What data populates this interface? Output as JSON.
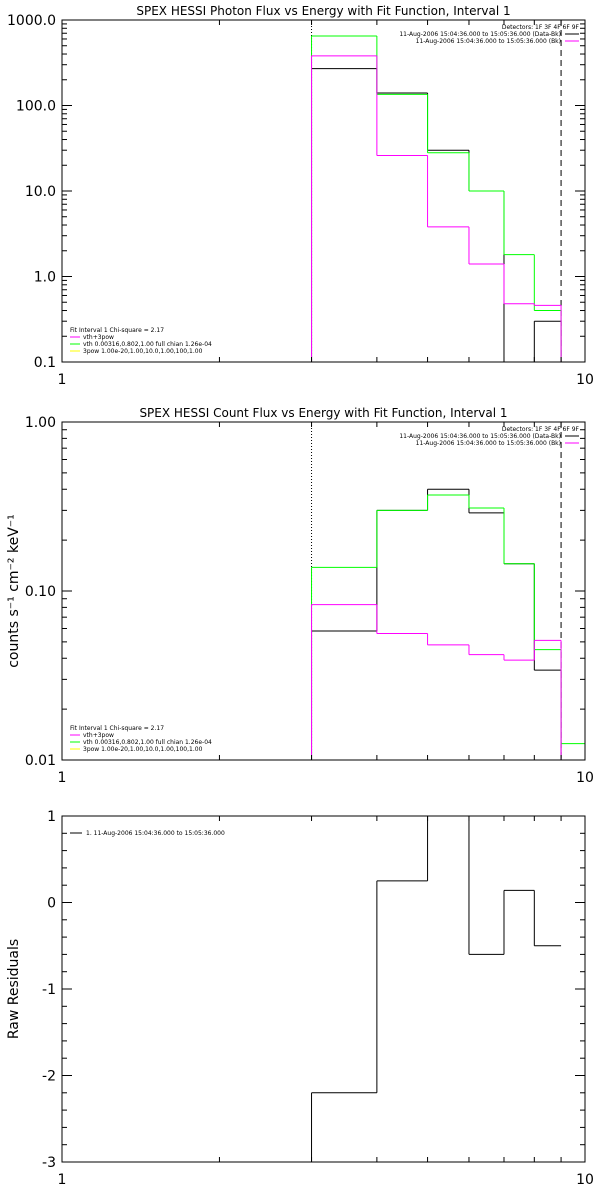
{
  "colors": {
    "background": "#ffffff",
    "axis": "#000000",
    "data": "#000000",
    "model_vth_3pow": "#ff00ff",
    "model_vth": "#00ff00",
    "model_3pow": "#ffff00",
    "bk": "#ff00ff"
  },
  "chart_data": [
    {
      "type": "line",
      "id": "photon",
      "title": "SPEX HESSI Photon Flux vs Energy with Fit Function, Interval 1",
      "xlabel": "",
      "ylabel": "",
      "x_scale": "log",
      "y_scale": "log",
      "xlim": [
        1,
        10
      ],
      "ylim": [
        0.1,
        1000
      ],
      "x_ticks": [
        {
          "value": 1,
          "label": "1"
        },
        {
          "value": 10,
          "label": "10"
        }
      ],
      "y_ticks": [
        {
          "value": 0.1,
          "label": "0.1"
        },
        {
          "value": 1,
          "label": "1.0"
        },
        {
          "value": 10,
          "label": "10.0"
        },
        {
          "value": 100,
          "label": "100.0"
        },
        {
          "value": 1000,
          "label": "1000.0"
        }
      ],
      "vlines": [
        {
          "x": 3.0,
          "style": "dotted",
          "color": "#000000"
        },
        {
          "x": 9.0,
          "style": "dashed",
          "color": "#000000"
        }
      ],
      "bin_edges": [
        3.0,
        4.0,
        5.0,
        6.0,
        7.0,
        8.0,
        9.0,
        10.0
      ],
      "series": [
        {
          "color": "#000000",
          "values": [
            270,
            140,
            30,
            10,
            null,
            0.3,
            null
          ]
        },
        {
          "color": "#00ff00",
          "values": [
            650,
            135,
            28,
            10,
            1.8,
            0.4,
            0.1
          ]
        },
        {
          "color": "#ff00ff",
          "values": [
            380,
            26,
            3.8,
            1.4,
            0.48,
            0.46,
            null
          ]
        }
      ],
      "legend_top": {
        "placement": "top-right",
        "header": "Detectors: 1F 3F 4F 6F 9F",
        "items": [
          {
            "label": "11-Aug-2006 15:04:36.000 to 15:05:36.000 (Data-Bk)",
            "color": "#000000"
          },
          {
            "label": "11-Aug-2006 15:04:36.000 to 15:05:36.000 (Bk)",
            "color": "#ff00ff"
          }
        ]
      },
      "legend_bottom": {
        "placement": "bottom-left",
        "header": "Fit Interval 1     Chi-square = 2.17",
        "items": [
          {
            "label": "vth+3pow",
            "color": "#ff00ff"
          },
          {
            "label": "vth 0.00316,0.802,1.00   full chian 1.26e-04",
            "color": "#00ff00"
          },
          {
            "label": "3pow 1.00e-20,1.00,10.0,1.00,100,1.00",
            "color": "#ffff00"
          }
        ]
      }
    },
    {
      "type": "line",
      "id": "count",
      "title": "SPEX HESSI Count Flux vs Energy with Fit Function, Interval 1",
      "xlabel": "",
      "ylabel": "counts s⁻¹ cm⁻² keV⁻¹",
      "x_scale": "log",
      "y_scale": "log",
      "xlim": [
        1,
        10
      ],
      "ylim": [
        0.01,
        1
      ],
      "x_ticks": [
        {
          "value": 1,
          "label": "1"
        },
        {
          "value": 10,
          "label": "10"
        }
      ],
      "y_ticks": [
        {
          "value": 0.01,
          "label": "0.01"
        },
        {
          "value": 0.1,
          "label": "0.10"
        },
        {
          "value": 1,
          "label": "1.00"
        }
      ],
      "vlines": [
        {
          "x": 3.0,
          "style": "dotted",
          "color": "#000000"
        },
        {
          "x": 9.0,
          "style": "dashed",
          "color": "#000000"
        }
      ],
      "bin_edges": [
        3.0,
        4.0,
        5.0,
        6.0,
        7.0,
        8.0,
        9.0,
        10.0
      ],
      "series": [
        {
          "color": "#000000",
          "values": [
            0.058,
            0.3,
            0.4,
            0.29,
            0.145,
            0.034,
            null
          ]
        },
        {
          "color": "#00ff00",
          "values": [
            0.138,
            0.3,
            0.37,
            0.31,
            0.145,
            0.045,
            0.0125
          ]
        },
        {
          "color": "#ff00ff",
          "values": [
            0.083,
            0.056,
            0.048,
            0.042,
            0.039,
            0.051,
            null
          ]
        }
      ],
      "legend_top": {
        "placement": "top-right",
        "header": "Detectors: 1F 3F 4F 6F 9F",
        "items": [
          {
            "label": "11-Aug-2006 15:04:36.000 to 15:05:36.000 (Data-Bk)",
            "color": "#000000"
          },
          {
            "label": "11-Aug-2006 15:04:36.000 to 15:05:36.000 (Bk)",
            "color": "#ff00ff"
          }
        ]
      },
      "legend_bottom": {
        "placement": "bottom-left",
        "header": "Fit Interval 1     Chi-square = 2.17",
        "items": [
          {
            "label": "vth+3pow",
            "color": "#ff00ff"
          },
          {
            "label": "vth 0.00316,0.802,1.00   full chian 1.26e-04",
            "color": "#00ff00"
          },
          {
            "label": "3pow 1.00e-20,1.00,10.0,1.00,100,1.00",
            "color": "#ffff00"
          }
        ]
      }
    },
    {
      "type": "line",
      "id": "residuals",
      "title": "",
      "xlabel": "",
      "ylabel": "Raw Residuals",
      "x_scale": "log",
      "y_scale": "linear",
      "xlim": [
        1,
        10
      ],
      "ylim": [
        -3,
        1
      ],
      "x_ticks": [
        {
          "value": 1,
          "label": "1"
        },
        {
          "value": 10,
          "label": "10"
        }
      ],
      "y_ticks": [
        {
          "value": -3,
          "label": "-3"
        },
        {
          "value": -2,
          "label": "-2"
        },
        {
          "value": -1,
          "label": "-1"
        },
        {
          "value": 0,
          "label": "0"
        },
        {
          "value": 1,
          "label": "1"
        }
      ],
      "vlines": [],
      "bin_edges": [
        3.0,
        4.0,
        5.0,
        6.0,
        7.0,
        8.0,
        9.0
      ],
      "series": [
        {
          "color": "#000000",
          "values": [
            -2.2,
            0.25,
            1.0,
            -0.6,
            0.14,
            -0.5
          ]
        }
      ],
      "legend_top": {
        "placement": "top-left",
        "header": "",
        "items": [
          {
            "label": "1. 11-Aug-2006 15:04:36.000 to 15:05:36.000",
            "color": "#000000"
          }
        ]
      },
      "legend_bottom": null
    }
  ]
}
